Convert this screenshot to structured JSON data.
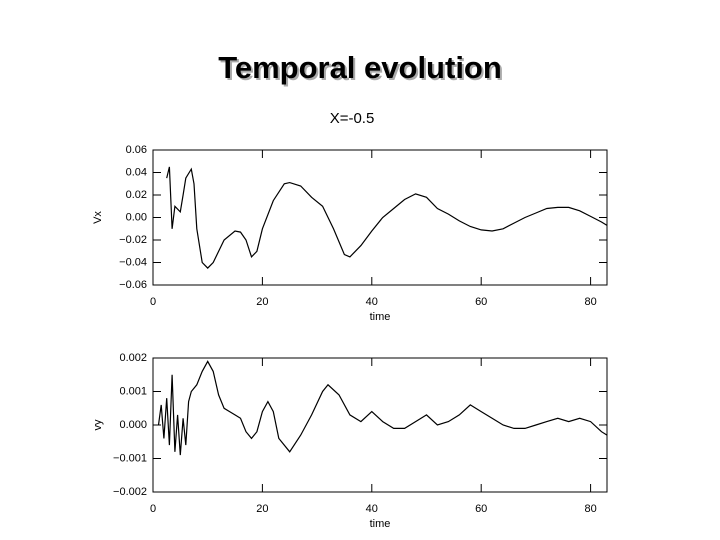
{
  "title": "Temporal evolution",
  "subtitle": "X=-0.5",
  "chart_data": [
    {
      "type": "line",
      "xlabel": "time",
      "ylabel": "Vx",
      "color": "#000000",
      "xlim": [
        0,
        83
      ],
      "xticks": [
        0,
        20,
        40,
        60,
        80
      ],
      "ylim": [
        -0.06,
        0.06
      ],
      "yticks": [
        {
          "value": -0.06,
          "label": "−0.06"
        },
        {
          "value": -0.04,
          "label": "−0.04"
        },
        {
          "value": -0.02,
          "label": "−0.02"
        },
        {
          "value": 0,
          "label": "0.00"
        },
        0.02,
        0.04,
        0.06
      ],
      "x": [
        2.5,
        3,
        3.5,
        4,
        5,
        5.5,
        6,
        7,
        7.5,
        8,
        9,
        10,
        11,
        13,
        15,
        16,
        17,
        18,
        19,
        20,
        22,
        24,
        25,
        27,
        29,
        31,
        33,
        35,
        36,
        38,
        40,
        42,
        44,
        46,
        48,
        50,
        52,
        54,
        56,
        58,
        60,
        62,
        64,
        66,
        68,
        70,
        72,
        74,
        76,
        78,
        80,
        82,
        83
      ],
      "values": [
        0.035,
        0.045,
        -0.01,
        0.01,
        0.005,
        0.02,
        0.035,
        0.043,
        0.03,
        -0.01,
        -0.04,
        -0.045,
        -0.04,
        -0.02,
        -0.012,
        -0.013,
        -0.02,
        -0.035,
        -0.03,
        -0.01,
        0.015,
        0.03,
        0.031,
        0.028,
        0.018,
        0.01,
        -0.01,
        -0.033,
        -0.035,
        -0.025,
        -0.012,
        0,
        0.008,
        0.016,
        0.021,
        0.018,
        0.008,
        0.003,
        -0.003,
        -0.008,
        -0.011,
        -0.012,
        -0.01,
        -0.005,
        0,
        0.004,
        0.008,
        0.009,
        0.009,
        0.006,
        0.001,
        -0.004,
        -0.007
      ]
    },
    {
      "type": "line",
      "xlabel": "time",
      "ylabel": "vy",
      "color": "#000000",
      "xlim": [
        0,
        83
      ],
      "xticks": [
        0,
        20,
        40,
        60,
        80
      ],
      "ylim": [
        -0.002,
        0.002
      ],
      "yticks": [
        {
          "value": -0.002,
          "label": "−0.002"
        },
        {
          "value": -0.001,
          "label": "−0.001"
        },
        {
          "value": 0,
          "label": "0.000"
        },
        0.001,
        0.002
      ],
      "x": [
        1,
        1.5,
        2,
        2.5,
        3,
        3.5,
        4,
        4.5,
        5,
        5.5,
        6,
        6.5,
        7,
        8,
        9,
        10,
        11,
        12,
        13,
        14,
        15,
        16,
        17,
        18,
        19,
        20,
        21,
        22,
        23,
        25,
        27,
        29,
        31,
        32,
        34,
        36,
        38,
        40,
        42,
        44,
        46,
        48,
        50,
        52,
        54,
        56,
        58,
        60,
        62,
        64,
        66,
        68,
        70,
        72,
        74,
        76,
        78,
        80,
        82,
        83
      ],
      "values": [
        0,
        0.0006,
        -0.0004,
        0.0008,
        -0.0006,
        0.0015,
        -0.0008,
        0.0003,
        -0.0009,
        0.0002,
        -0.0006,
        0.0007,
        0.001,
        0.0012,
        0.0016,
        0.0019,
        0.0016,
        0.0009,
        0.0005,
        0.0004,
        0.0003,
        0.0002,
        -0.0002,
        -0.0004,
        -0.0002,
        0.0004,
        0.0007,
        0.0004,
        -0.0004,
        -0.0008,
        -0.0003,
        0.0003,
        0.001,
        0.0012,
        0.0009,
        0.0003,
        0.0001,
        0.0004,
        0.0001,
        -0.0001,
        -0.0001,
        0.0001,
        0.0003,
        0,
        0.0001,
        0.0003,
        0.0006,
        0.0004,
        0.0002,
        0,
        -0.0001,
        -0.0001,
        0,
        0.0001,
        0.0002,
        0.0001,
        0.0002,
        0.0001,
        -0.0002,
        -0.0003
      ]
    }
  ]
}
